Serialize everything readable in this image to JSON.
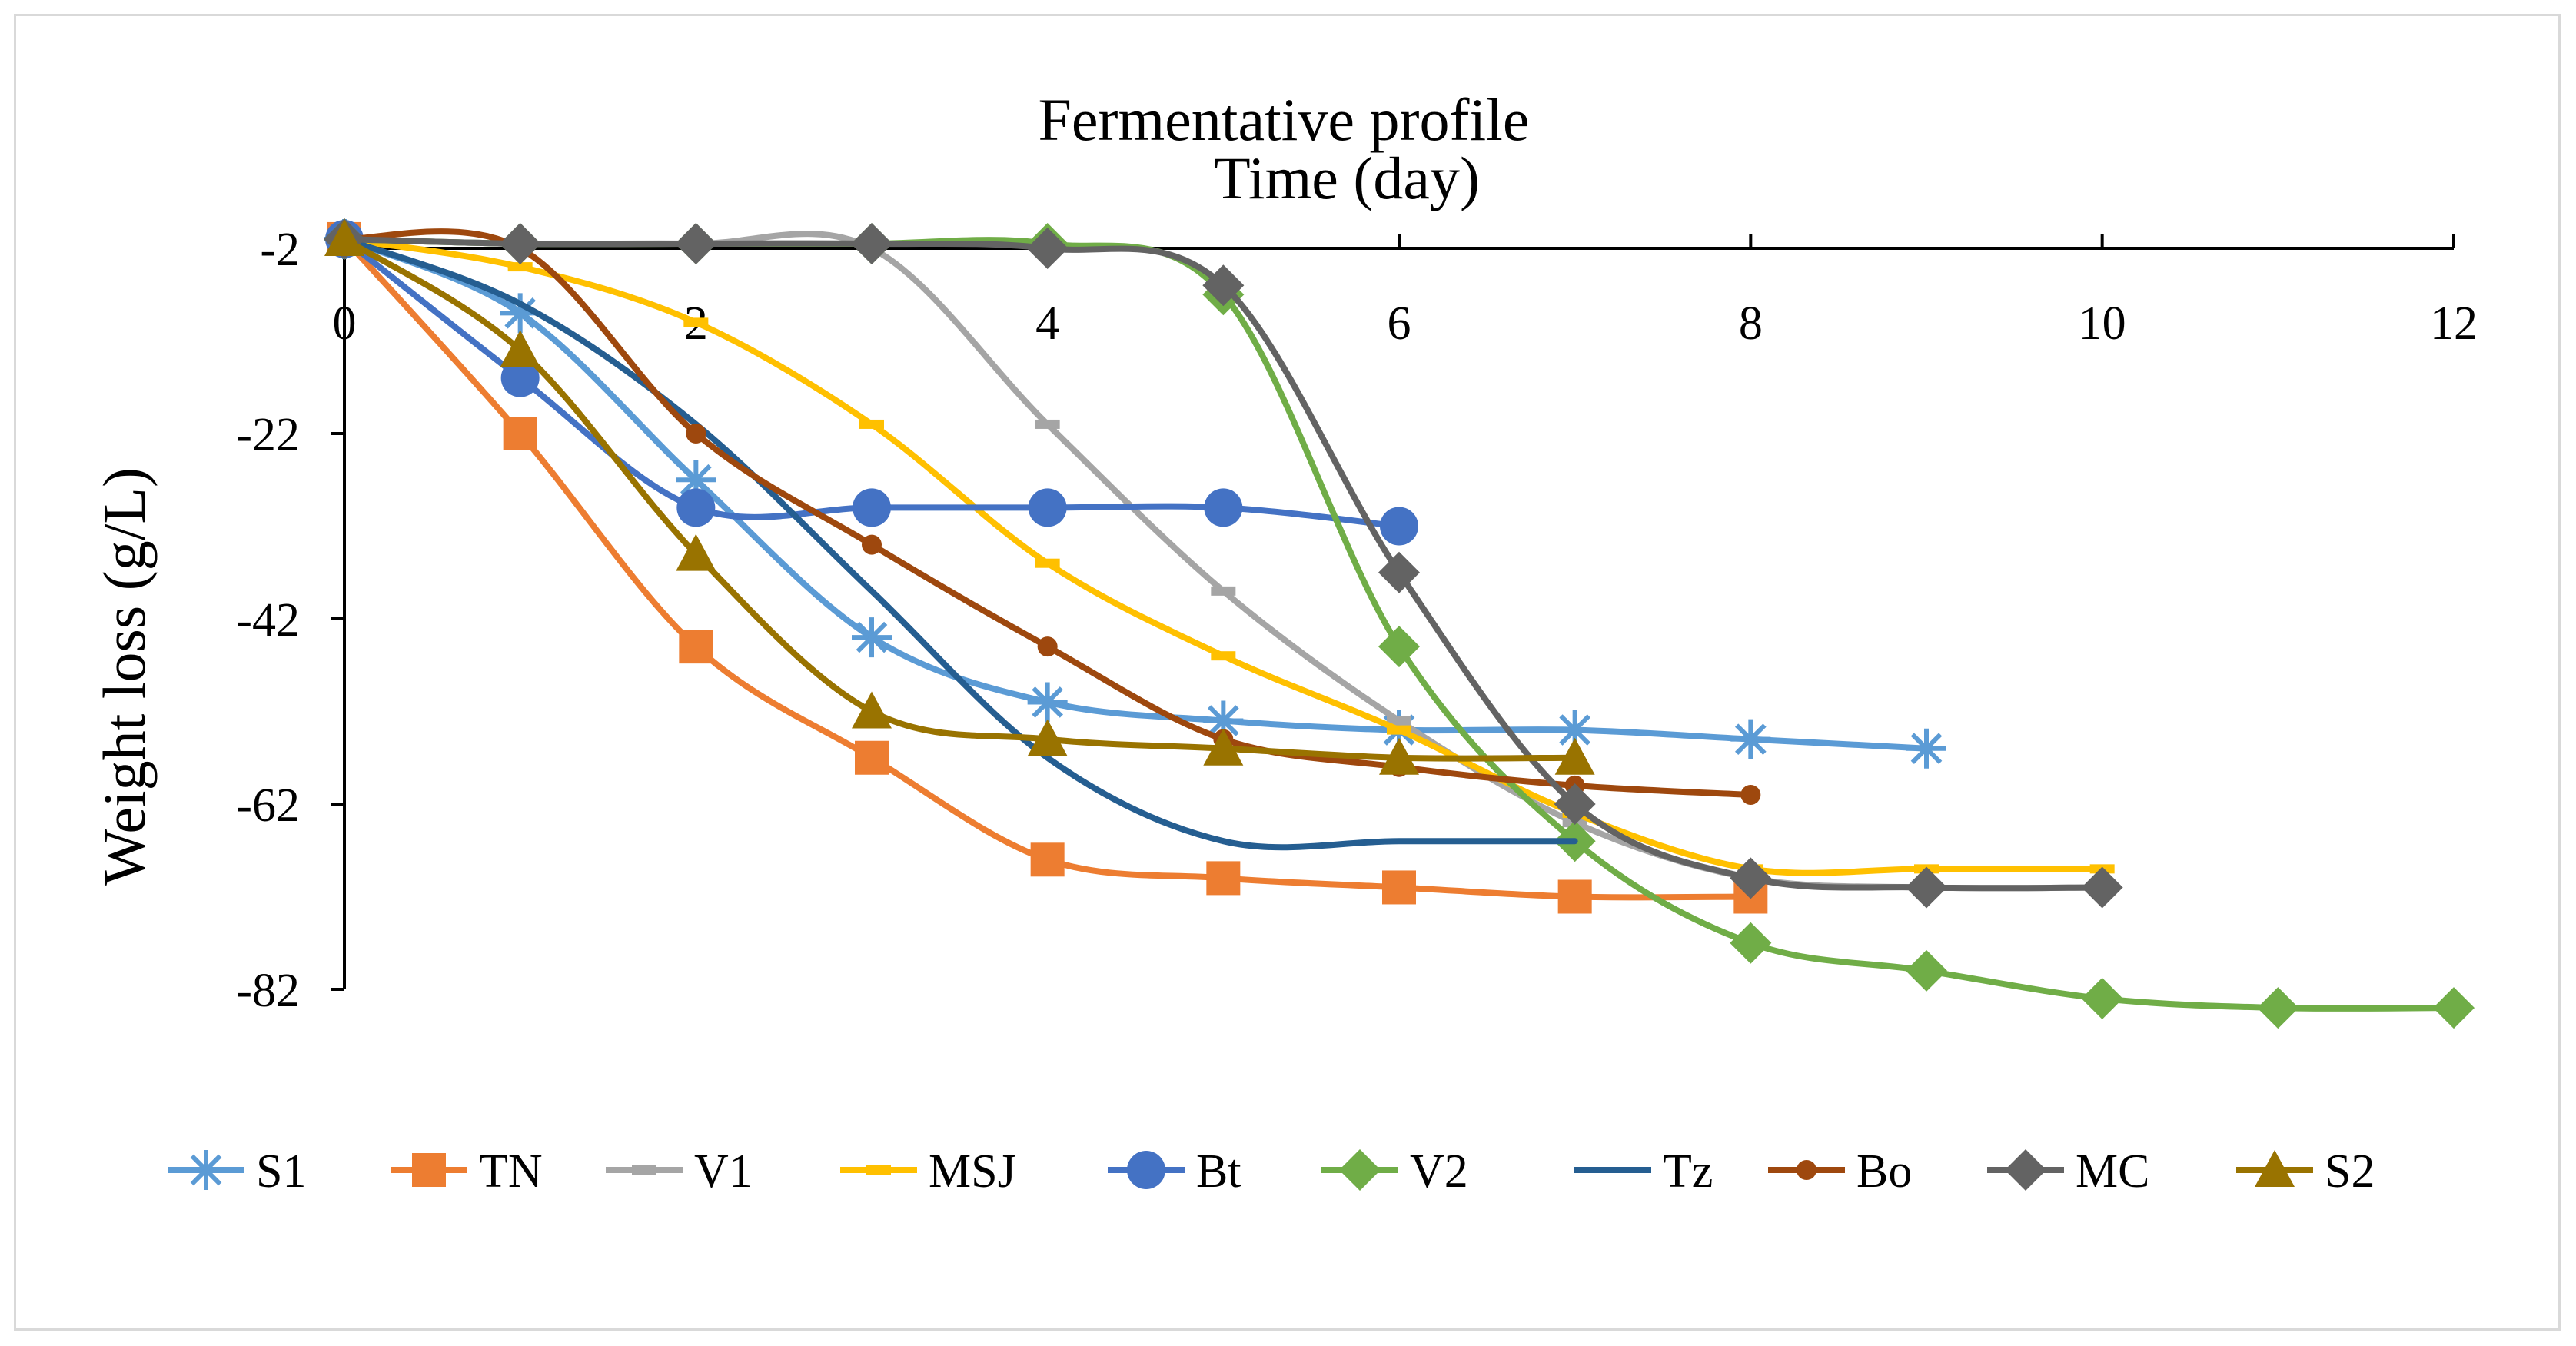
{
  "chart_data": {
    "type": "line",
    "title": "Fermentative profile",
    "xlabel": "Time (day)",
    "ylabel": "Weight loss (g/L)",
    "xlim": [
      0,
      12
    ],
    "ylim": [
      -82,
      -2
    ],
    "x_ticks": [
      "0",
      "2",
      "4",
      "6",
      "8",
      "10",
      "12"
    ],
    "y_ticks": [
      "-2",
      "-22",
      "-42",
      "-62",
      "-82"
    ],
    "grid": false,
    "legend_position": "bottom",
    "series": [
      {
        "name": "S1",
        "color": "#5b9bd5",
        "marker": "star",
        "x": [
          0,
          1,
          2,
          3,
          4,
          5,
          6,
          7,
          8,
          9
        ],
        "y": [
          -1,
          -9,
          -27,
          -44,
          -51,
          -53,
          -54,
          -54,
          -55,
          -56
        ]
      },
      {
        "name": "TN",
        "color": "#ed7d31",
        "marker": "square",
        "x": [
          0,
          1,
          2,
          3,
          4,
          5,
          6,
          7,
          8
        ],
        "y": [
          -1,
          -22,
          -45,
          -57,
          -68,
          -70,
          -71,
          -72,
          -72
        ]
      },
      {
        "name": "V1",
        "color": "#a5a5a5",
        "marker": "dash",
        "x": [
          0,
          1,
          2,
          3,
          4,
          5,
          6,
          7,
          8,
          9,
          10
        ],
        "y": [
          -1,
          -1.5,
          -1.5,
          -2,
          -21,
          -39,
          -53,
          -64,
          -70,
          -71,
          -71
        ]
      },
      {
        "name": "MSJ",
        "color": "#ffc000",
        "marker": "dash",
        "x": [
          0,
          1,
          2,
          3,
          4,
          5,
          6,
          7,
          8,
          9,
          10
        ],
        "y": [
          -1,
          -4,
          -10,
          -21,
          -36,
          -46,
          -54,
          -63,
          -69,
          -69,
          -69
        ]
      },
      {
        "name": "Bt",
        "color": "#4472c4",
        "marker": "circle",
        "x": [
          0,
          1,
          2,
          3,
          4,
          5,
          6
        ],
        "y": [
          -1,
          -16,
          -30,
          -30,
          -30,
          -30,
          -32
        ]
      },
      {
        "name": "V2",
        "color": "#70ad47",
        "marker": "diamond",
        "x": [
          0,
          1,
          2,
          3,
          4,
          5,
          6,
          7,
          8,
          9,
          10,
          11,
          12
        ],
        "y": [
          -1,
          -1.5,
          -1.5,
          -1.5,
          -1.5,
          -7,
          -45,
          -66,
          -77,
          -80,
          -83,
          -84,
          -84
        ]
      },
      {
        "name": "Tz",
        "color": "#255e91",
        "marker": "none",
        "x": [
          0,
          1,
          2,
          3,
          4,
          5,
          6,
          7
        ],
        "y": [
          -1,
          -8,
          -21,
          -39,
          -57,
          -66,
          -66,
          -66
        ]
      },
      {
        "name": "Bo",
        "color": "#9e480e",
        "marker": "small-circle",
        "x": [
          0,
          1,
          2,
          3,
          4,
          5,
          6,
          7,
          8
        ],
        "y": [
          -1,
          -2,
          -22,
          -34,
          -45,
          -55,
          -58,
          -60,
          -61
        ]
      },
      {
        "name": "MC",
        "color": "#636363",
        "marker": "diamond",
        "x": [
          0,
          1,
          2,
          3,
          4,
          5,
          6,
          7,
          8,
          9,
          10
        ],
        "y": [
          -1,
          -1.5,
          -1.5,
          -1.5,
          -2,
          -6,
          -37,
          -62,
          -70,
          -71,
          -71
        ]
      },
      {
        "name": "S2",
        "color": "#997300",
        "marker": "triangle",
        "x": [
          0,
          1,
          2,
          3,
          4,
          5,
          6,
          7
        ],
        "y": [
          -1,
          -13,
          -35,
          -52,
          -55,
          -56,
          -57,
          -57
        ]
      }
    ]
  }
}
